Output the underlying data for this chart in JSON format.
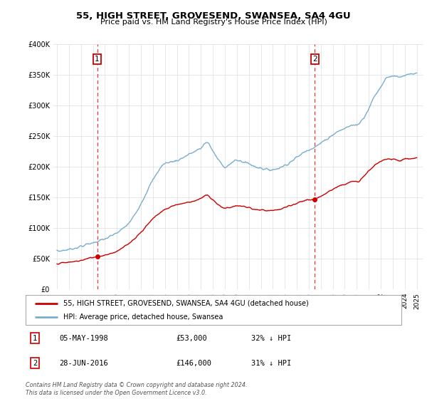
{
  "title": "55, HIGH STREET, GROVESEND, SWANSEA, SA4 4GU",
  "subtitle": "Price paid vs. HM Land Registry's House Price Index (HPI)",
  "legend_label_red": "55, HIGH STREET, GROVESEND, SWANSEA, SA4 4GU (detached house)",
  "legend_label_blue": "HPI: Average price, detached house, Swansea",
  "footer": "Contains HM Land Registry data © Crown copyright and database right 2024.\nThis data is licensed under the Open Government Licence v3.0.",
  "sale1_date": "05-MAY-1998",
  "sale1_price": "£53,000",
  "sale1_hpi": "32% ↓ HPI",
  "sale2_date": "28-JUN-2016",
  "sale2_price": "£146,000",
  "sale2_hpi": "31% ↓ HPI",
  "ylim": [
    0,
    400000
  ],
  "yticks": [
    0,
    50000,
    100000,
    150000,
    200000,
    250000,
    300000,
    350000,
    400000
  ],
  "sale1_year": 1998.35,
  "sale1_value": 53000,
  "sale2_year": 2016.49,
  "sale2_value": 146000,
  "red_color": "#cc0000",
  "blue_color": "#7aadce",
  "vline_color": "#ee3333",
  "grid_color": "#dddddd",
  "hpi_keypoints": [
    [
      1995.0,
      62000
    ],
    [
      1996.0,
      65000
    ],
    [
      1997.0,
      70000
    ],
    [
      1998.0,
      76000
    ],
    [
      1999.0,
      82000
    ],
    [
      2000.0,
      92000
    ],
    [
      2001.0,
      108000
    ],
    [
      2002.0,
      140000
    ],
    [
      2003.0,
      178000
    ],
    [
      2004.0,
      205000
    ],
    [
      2005.0,
      210000
    ],
    [
      2006.0,
      220000
    ],
    [
      2007.0,
      230000
    ],
    [
      2007.5,
      240000
    ],
    [
      2008.0,
      225000
    ],
    [
      2008.5,
      210000
    ],
    [
      2009.0,
      200000
    ],
    [
      2009.5,
      205000
    ],
    [
      2010.0,
      210000
    ],
    [
      2010.5,
      208000
    ],
    [
      2011.0,
      205000
    ],
    [
      2011.5,
      200000
    ],
    [
      2012.0,
      198000
    ],
    [
      2012.5,
      195000
    ],
    [
      2013.0,
      195000
    ],
    [
      2013.5,
      198000
    ],
    [
      2014.0,
      202000
    ],
    [
      2014.5,
      208000
    ],
    [
      2015.0,
      215000
    ],
    [
      2015.5,
      222000
    ],
    [
      2016.0,
      228000
    ],
    [
      2016.5,
      232000
    ],
    [
      2017.0,
      238000
    ],
    [
      2017.5,
      245000
    ],
    [
      2018.0,
      252000
    ],
    [
      2018.5,
      258000
    ],
    [
      2019.0,
      262000
    ],
    [
      2019.5,
      267000
    ],
    [
      2020.0,
      268000
    ],
    [
      2020.5,
      278000
    ],
    [
      2021.0,
      295000
    ],
    [
      2021.5,
      315000
    ],
    [
      2022.0,
      330000
    ],
    [
      2022.5,
      345000
    ],
    [
      2023.0,
      348000
    ],
    [
      2023.5,
      345000
    ],
    [
      2024.0,
      348000
    ],
    [
      2024.5,
      350000
    ],
    [
      2025.0,
      352000
    ]
  ],
  "red_keypoints": [
    [
      1995.0,
      42000
    ],
    [
      1996.0,
      44000
    ],
    [
      1997.0,
      47000
    ],
    [
      1998.0,
      52000
    ],
    [
      1998.35,
      53000
    ],
    [
      1999.0,
      56000
    ],
    [
      2000.0,
      62000
    ],
    [
      2001.0,
      75000
    ],
    [
      2002.0,
      93000
    ],
    [
      2003.0,
      115000
    ],
    [
      2004.0,
      130000
    ],
    [
      2005.0,
      138000
    ],
    [
      2006.0,
      142000
    ],
    [
      2007.0,
      148000
    ],
    [
      2007.5,
      153000
    ],
    [
      2008.0,
      145000
    ],
    [
      2008.5,
      138000
    ],
    [
      2009.0,
      132000
    ],
    [
      2009.5,
      134000
    ],
    [
      2010.0,
      136000
    ],
    [
      2010.5,
      135000
    ],
    [
      2011.0,
      133000
    ],
    [
      2011.5,
      130000
    ],
    [
      2012.0,
      129000
    ],
    [
      2012.5,
      128000
    ],
    [
      2013.0,
      128000
    ],
    [
      2013.5,
      130000
    ],
    [
      2014.0,
      133000
    ],
    [
      2014.5,
      136000
    ],
    [
      2015.0,
      140000
    ],
    [
      2015.5,
      144000
    ],
    [
      2016.0,
      146000
    ],
    [
      2016.49,
      146000
    ],
    [
      2017.0,
      152000
    ],
    [
      2017.5,
      158000
    ],
    [
      2018.0,
      163000
    ],
    [
      2018.5,
      168000
    ],
    [
      2019.0,
      172000
    ],
    [
      2019.5,
      175000
    ],
    [
      2020.0,
      175000
    ],
    [
      2020.5,
      182000
    ],
    [
      2021.0,
      193000
    ],
    [
      2021.5,
      202000
    ],
    [
      2022.0,
      208000
    ],
    [
      2022.5,
      212000
    ],
    [
      2023.0,
      213000
    ],
    [
      2023.5,
      210000
    ],
    [
      2024.0,
      212000
    ],
    [
      2024.5,
      213000
    ],
    [
      2025.0,
      214000
    ]
  ]
}
